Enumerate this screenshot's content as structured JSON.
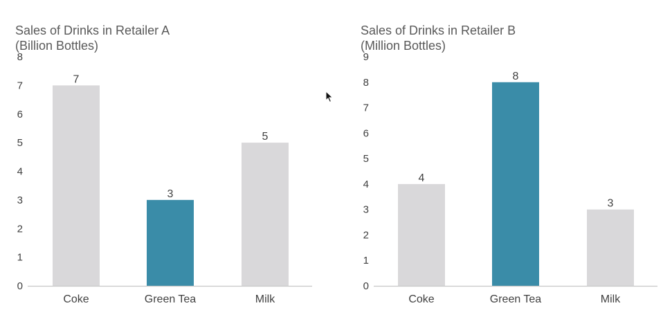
{
  "colors": {
    "highlight": "#3a8ca8",
    "muted": "#d9d8da",
    "axis": "#c8c8c8",
    "text": "#404040",
    "title": "#595959"
  },
  "chart_data": [
    {
      "type": "bar",
      "title_lines": [
        "Sales of Drinks in Retailer A",
        "(Billion Bottles)"
      ],
      "categories": [
        "Coke",
        "Green Tea",
        "Milk"
      ],
      "values": [
        7,
        3,
        5
      ],
      "highlight": [
        false,
        true,
        false
      ],
      "ylim": [
        0,
        8
      ],
      "yticks": [
        0,
        1,
        2,
        3,
        4,
        5,
        6,
        7,
        8
      ],
      "xlabel": "",
      "ylabel": "",
      "grid": false
    },
    {
      "type": "bar",
      "title_lines": [
        "Sales of Drinks in Retailer B",
        "(Million Bottles)"
      ],
      "categories": [
        "Coke",
        "Green Tea",
        "Milk"
      ],
      "values": [
        4,
        8,
        3
      ],
      "highlight": [
        false,
        true,
        false
      ],
      "ylim": [
        0,
        9
      ],
      "yticks": [
        0,
        1,
        2,
        3,
        4,
        5,
        6,
        7,
        8,
        9
      ],
      "xlabel": "",
      "ylabel": "",
      "grid": false
    }
  ]
}
